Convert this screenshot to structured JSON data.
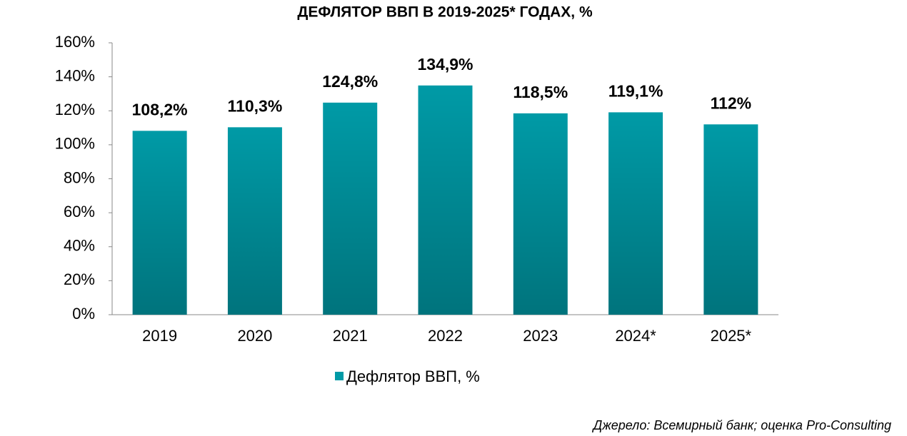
{
  "chart_data": {
    "type": "bar",
    "title": "ДЕФЛЯТОР ВВП В 2019-2025* ГОДАХ, %",
    "categories": [
      "2019",
      "2020",
      "2021",
      "2022",
      "2023",
      "2024*",
      "2025*"
    ],
    "series": [
      {
        "name": "Дефлятор ВВП, %",
        "color": "#009aa6",
        "values": [
          108.2,
          110.3,
          124.8,
          134.9,
          118.5,
          119.1,
          112
        ],
        "value_labels": [
          "108,2%",
          "110,3%",
          "124,8%",
          "134,9%",
          "118,5%",
          "119,1%",
          "112%"
        ]
      }
    ],
    "ylim": [
      0,
      160
    ],
    "yticks": [
      {
        "value": 0,
        "label": "0%"
      },
      {
        "value": 20,
        "label": "20%"
      },
      {
        "value": 40,
        "label": "40%"
      },
      {
        "value": 60,
        "label": "60%"
      },
      {
        "value": 80,
        "label": "80%"
      },
      {
        "value": 100,
        "label": "100%"
      },
      {
        "value": 120,
        "label": "120%"
      },
      {
        "value": 140,
        "label": "140%"
      },
      {
        "value": 160,
        "label": "160%"
      }
    ],
    "grid": false,
    "source": "Джерело: Всемирный банк; оценка Pro-Consulting"
  }
}
